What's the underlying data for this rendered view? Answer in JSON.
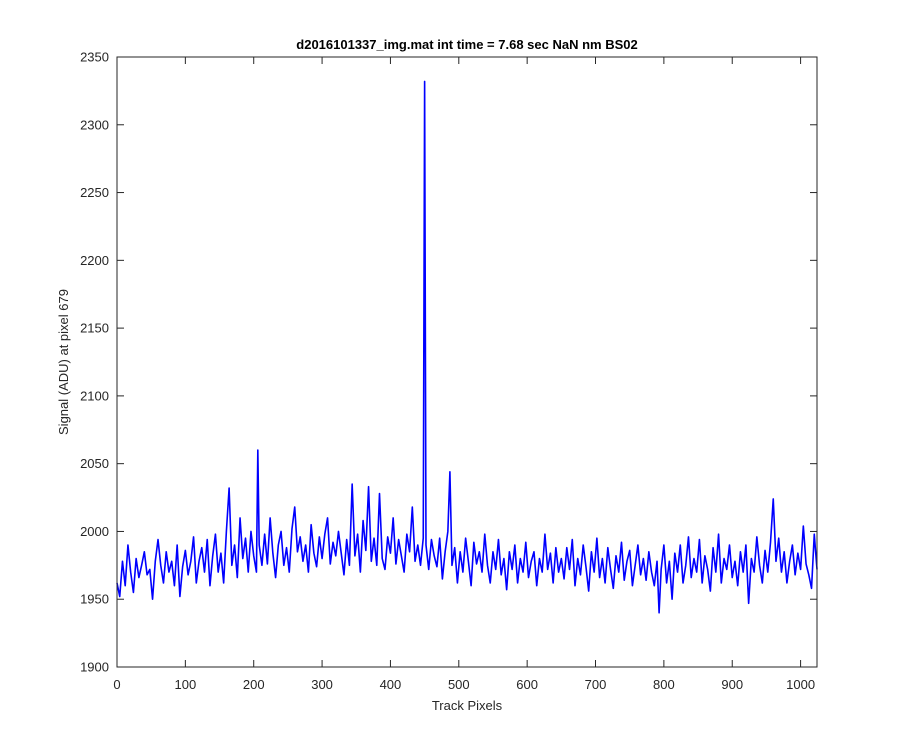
{
  "chart_data": {
    "type": "line",
    "title": "d2016101337_img.mat int time = 7.68 sec  NaN nm BS02",
    "xlabel": "Track Pixels",
    "ylabel": "Signal (ADU) at pixel 679",
    "xlim": [
      0,
      1024
    ],
    "ylim": [
      1900,
      2350
    ],
    "xticks": [
      0,
      100,
      200,
      300,
      400,
      500,
      600,
      700,
      800,
      900,
      1000
    ],
    "yticks": [
      1900,
      1950,
      2000,
      2050,
      2100,
      2150,
      2200,
      2250,
      2300,
      2350
    ],
    "grid": false,
    "line_color": "#0000ff",
    "series": [
      {
        "points": [
          [
            0,
            1962
          ],
          [
            4,
            1952
          ],
          [
            8,
            1978
          ],
          [
            12,
            1960
          ],
          [
            16,
            1990
          ],
          [
            20,
            1970
          ],
          [
            24,
            1955
          ],
          [
            28,
            1980
          ],
          [
            32,
            1966
          ],
          [
            36,
            1975
          ],
          [
            40,
            1985
          ],
          [
            44,
            1968
          ],
          [
            48,
            1972
          ],
          [
            52,
            1950
          ],
          [
            56,
            1978
          ],
          [
            60,
            1994
          ],
          [
            64,
            1975
          ],
          [
            68,
            1962
          ],
          [
            72,
            1985
          ],
          [
            76,
            1970
          ],
          [
            80,
            1978
          ],
          [
            84,
            1960
          ],
          [
            88,
            1990
          ],
          [
            92,
            1952
          ],
          [
            96,
            1974
          ],
          [
            100,
            1986
          ],
          [
            104,
            1968
          ],
          [
            108,
            1978
          ],
          [
            112,
            1996
          ],
          [
            116,
            1962
          ],
          [
            120,
            1978
          ],
          [
            124,
            1988
          ],
          [
            128,
            1970
          ],
          [
            132,
            1994
          ],
          [
            136,
            1960
          ],
          [
            140,
            1982
          ],
          [
            144,
            1998
          ],
          [
            148,
            1970
          ],
          [
            152,
            1984
          ],
          [
            156,
            1962
          ],
          [
            160,
            2000
          ],
          [
            164,
            2032
          ],
          [
            168,
            1975
          ],
          [
            172,
            1990
          ],
          [
            176,
            1966
          ],
          [
            180,
            2010
          ],
          [
            184,
            1980
          ],
          [
            188,
            1995
          ],
          [
            192,
            1970
          ],
          [
            196,
            2000
          ],
          [
            200,
            1982
          ],
          [
            204,
            1970
          ],
          [
            206,
            2060
          ],
          [
            208,
            1990
          ],
          [
            212,
            1975
          ],
          [
            216,
            1998
          ],
          [
            220,
            1976
          ],
          [
            224,
            2010
          ],
          [
            228,
            1984
          ],
          [
            232,
            1966
          ],
          [
            236,
            1990
          ],
          [
            240,
            2000
          ],
          [
            244,
            1975
          ],
          [
            248,
            1988
          ],
          [
            252,
            1970
          ],
          [
            256,
            2002
          ],
          [
            260,
            2018
          ],
          [
            264,
            1985
          ],
          [
            268,
            1996
          ],
          [
            272,
            1978
          ],
          [
            276,
            1990
          ],
          [
            280,
            1970
          ],
          [
            284,
            2005
          ],
          [
            288,
            1984
          ],
          [
            292,
            1974
          ],
          [
            296,
            1996
          ],
          [
            300,
            1980
          ],
          [
            304,
            1998
          ],
          [
            308,
            2010
          ],
          [
            312,
            1976
          ],
          [
            316,
            1992
          ],
          [
            320,
            1982
          ],
          [
            324,
            2000
          ],
          [
            328,
            1984
          ],
          [
            332,
            1968
          ],
          [
            336,
            1994
          ],
          [
            340,
            1975
          ],
          [
            344,
            2035
          ],
          [
            348,
            1982
          ],
          [
            352,
            1998
          ],
          [
            356,
            1970
          ],
          [
            360,
            2008
          ],
          [
            364,
            1986
          ],
          [
            368,
            2033
          ],
          [
            372,
            1978
          ],
          [
            376,
            1995
          ],
          [
            380,
            1975
          ],
          [
            384,
            2028
          ],
          [
            388,
            1980
          ],
          [
            392,
            1972
          ],
          [
            396,
            1996
          ],
          [
            400,
            1984
          ],
          [
            404,
            2010
          ],
          [
            408,
            1976
          ],
          [
            412,
            1994
          ],
          [
            416,
            1982
          ],
          [
            420,
            1970
          ],
          [
            424,
            1998
          ],
          [
            428,
            1985
          ],
          [
            432,
            2018
          ],
          [
            436,
            1978
          ],
          [
            440,
            1990
          ],
          [
            444,
            1975
          ],
          [
            448,
            1995
          ],
          [
            450,
            2332
          ],
          [
            452,
            1990
          ],
          [
            456,
            1972
          ],
          [
            460,
            1994
          ],
          [
            464,
            1982
          ],
          [
            468,
            1974
          ],
          [
            472,
            1995
          ],
          [
            476,
            1965
          ],
          [
            480,
            1985
          ],
          [
            484,
            2000
          ],
          [
            487,
            2044
          ],
          [
            490,
            1975
          ],
          [
            494,
            1988
          ],
          [
            498,
            1962
          ],
          [
            502,
            1985
          ],
          [
            506,
            1970
          ],
          [
            510,
            1995
          ],
          [
            514,
            1978
          ],
          [
            518,
            1960
          ],
          [
            522,
            1992
          ],
          [
            526,
            1976
          ],
          [
            530,
            1985
          ],
          [
            534,
            1970
          ],
          [
            538,
            1998
          ],
          [
            542,
            1975
          ],
          [
            546,
            1962
          ],
          [
            550,
            1985
          ],
          [
            554,
            1972
          ],
          [
            558,
            1994
          ],
          [
            562,
            1968
          ],
          [
            566,
            1980
          ],
          [
            570,
            1957
          ],
          [
            574,
            1985
          ],
          [
            578,
            1972
          ],
          [
            582,
            1990
          ],
          [
            586,
            1962
          ],
          [
            590,
            1980
          ],
          [
            594,
            1970
          ],
          [
            598,
            1992
          ],
          [
            602,
            1966
          ],
          [
            606,
            1978
          ],
          [
            610,
            1985
          ],
          [
            614,
            1960
          ],
          [
            618,
            1980
          ],
          [
            622,
            1970
          ],
          [
            626,
            1998
          ],
          [
            630,
            1972
          ],
          [
            634,
            1984
          ],
          [
            638,
            1962
          ],
          [
            642,
            1988
          ],
          [
            646,
            1970
          ],
          [
            650,
            1980
          ],
          [
            654,
            1965
          ],
          [
            658,
            1988
          ],
          [
            662,
            1972
          ],
          [
            666,
            1994
          ],
          [
            670,
            1960
          ],
          [
            674,
            1980
          ],
          [
            678,
            1968
          ],
          [
            682,
            1990
          ],
          [
            686,
            1974
          ],
          [
            690,
            1956
          ],
          [
            694,
            1985
          ],
          [
            698,
            1970
          ],
          [
            702,
            1995
          ],
          [
            706,
            1966
          ],
          [
            710,
            1980
          ],
          [
            714,
            1962
          ],
          [
            718,
            1988
          ],
          [
            722,
            1972
          ],
          [
            726,
            1958
          ],
          [
            730,
            1982
          ],
          [
            734,
            1970
          ],
          [
            738,
            1992
          ],
          [
            742,
            1964
          ],
          [
            746,
            1978
          ],
          [
            750,
            1986
          ],
          [
            754,
            1960
          ],
          [
            758,
            1975
          ],
          [
            762,
            1990
          ],
          [
            766,
            1968
          ],
          [
            770,
            1980
          ],
          [
            774,
            1964
          ],
          [
            778,
            1985
          ],
          [
            782,
            1970
          ],
          [
            786,
            1960
          ],
          [
            790,
            1978
          ],
          [
            793,
            1940
          ],
          [
            796,
            1972
          ],
          [
            800,
            1990
          ],
          [
            804,
            1962
          ],
          [
            808,
            1978
          ],
          [
            812,
            1950
          ],
          [
            816,
            1984
          ],
          [
            820,
            1970
          ],
          [
            824,
            1990
          ],
          [
            828,
            1962
          ],
          [
            832,
            1975
          ],
          [
            836,
            1996
          ],
          [
            840,
            1966
          ],
          [
            844,
            1980
          ],
          [
            848,
            1970
          ],
          [
            852,
            1994
          ],
          [
            856,
            1962
          ],
          [
            860,
            1982
          ],
          [
            864,
            1972
          ],
          [
            868,
            1956
          ],
          [
            872,
            1988
          ],
          [
            876,
            1970
          ],
          [
            880,
            1998
          ],
          [
            884,
            1962
          ],
          [
            888,
            1980
          ],
          [
            892,
            1972
          ],
          [
            896,
            1990
          ],
          [
            900,
            1966
          ],
          [
            904,
            1978
          ],
          [
            908,
            1960
          ],
          [
            912,
            1985
          ],
          [
            916,
            1970
          ],
          [
            920,
            1990
          ],
          [
            924,
            1947
          ],
          [
            928,
            1980
          ],
          [
            932,
            1970
          ],
          [
            936,
            1996
          ],
          [
            940,
            1975
          ],
          [
            944,
            1962
          ],
          [
            948,
            1986
          ],
          [
            952,
            1970
          ],
          [
            956,
            1992
          ],
          [
            960,
            2024
          ],
          [
            964,
            1978
          ],
          [
            968,
            1995
          ],
          [
            972,
            1970
          ],
          [
            976,
            1985
          ],
          [
            980,
            1962
          ],
          [
            984,
            1978
          ],
          [
            988,
            1990
          ],
          [
            992,
            1968
          ],
          [
            996,
            1984
          ],
          [
            1000,
            1972
          ],
          [
            1004,
            2004
          ],
          [
            1008,
            1976
          ],
          [
            1012,
            1968
          ],
          [
            1016,
            1958
          ],
          [
            1020,
            1998
          ],
          [
            1024,
            1972
          ]
        ]
      }
    ]
  }
}
